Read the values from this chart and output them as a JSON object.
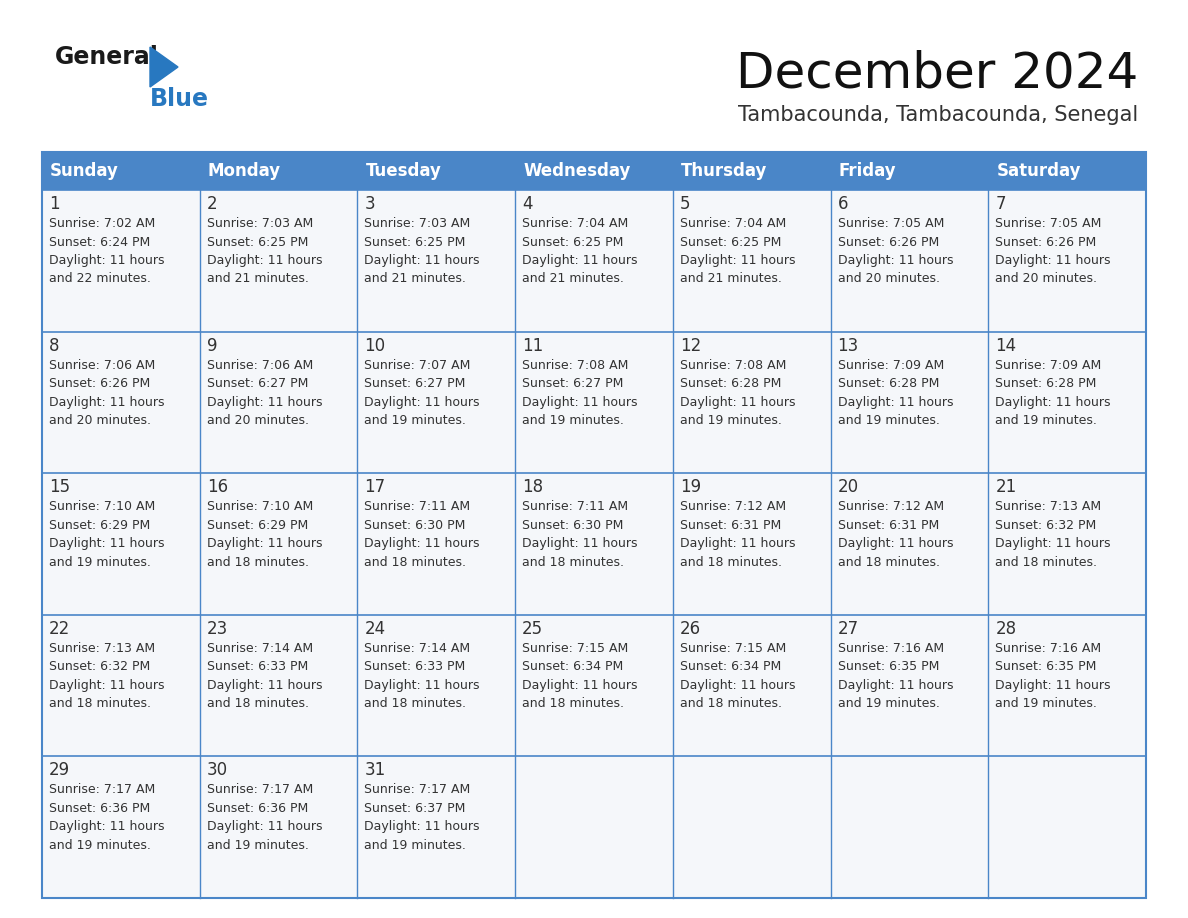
{
  "title": "December 2024",
  "subtitle": "Tambacounda, Tambacounda, Senegal",
  "days_of_week": [
    "Sunday",
    "Monday",
    "Tuesday",
    "Wednesday",
    "Thursday",
    "Friday",
    "Saturday"
  ],
  "header_bg": "#4a86c8",
  "header_text": "#ffffff",
  "cell_bg": "#f5f7fa",
  "cell_border_color": "#4a86c8",
  "day_num_color": "#333333",
  "info_color": "#333333",
  "title_color": "#111111",
  "subtitle_color": "#333333",
  "logo_general_color": "#1a1a1a",
  "logo_blue_color": "#2878c0",
  "logo_triangle_color": "#2878c0",
  "calendar_data": [
    {
      "day": 1,
      "col": 0,
      "row": 0,
      "sunrise": "7:02 AM",
      "sunset": "6:24 PM",
      "daylight": "11 hours and 22 minutes."
    },
    {
      "day": 2,
      "col": 1,
      "row": 0,
      "sunrise": "7:03 AM",
      "sunset": "6:25 PM",
      "daylight": "11 hours and 21 minutes."
    },
    {
      "day": 3,
      "col": 2,
      "row": 0,
      "sunrise": "7:03 AM",
      "sunset": "6:25 PM",
      "daylight": "11 hours and 21 minutes."
    },
    {
      "day": 4,
      "col": 3,
      "row": 0,
      "sunrise": "7:04 AM",
      "sunset": "6:25 PM",
      "daylight": "11 hours and 21 minutes."
    },
    {
      "day": 5,
      "col": 4,
      "row": 0,
      "sunrise": "7:04 AM",
      "sunset": "6:25 PM",
      "daylight": "11 hours and 21 minutes."
    },
    {
      "day": 6,
      "col": 5,
      "row": 0,
      "sunrise": "7:05 AM",
      "sunset": "6:26 PM",
      "daylight": "11 hours and 20 minutes."
    },
    {
      "day": 7,
      "col": 6,
      "row": 0,
      "sunrise": "7:05 AM",
      "sunset": "6:26 PM",
      "daylight": "11 hours and 20 minutes."
    },
    {
      "day": 8,
      "col": 0,
      "row": 1,
      "sunrise": "7:06 AM",
      "sunset": "6:26 PM",
      "daylight": "11 hours and 20 minutes."
    },
    {
      "day": 9,
      "col": 1,
      "row": 1,
      "sunrise": "7:06 AM",
      "sunset": "6:27 PM",
      "daylight": "11 hours and 20 minutes."
    },
    {
      "day": 10,
      "col": 2,
      "row": 1,
      "sunrise": "7:07 AM",
      "sunset": "6:27 PM",
      "daylight": "11 hours and 19 minutes."
    },
    {
      "day": 11,
      "col": 3,
      "row": 1,
      "sunrise": "7:08 AM",
      "sunset": "6:27 PM",
      "daylight": "11 hours and 19 minutes."
    },
    {
      "day": 12,
      "col": 4,
      "row": 1,
      "sunrise": "7:08 AM",
      "sunset": "6:28 PM",
      "daylight": "11 hours and 19 minutes."
    },
    {
      "day": 13,
      "col": 5,
      "row": 1,
      "sunrise": "7:09 AM",
      "sunset": "6:28 PM",
      "daylight": "11 hours and 19 minutes."
    },
    {
      "day": 14,
      "col": 6,
      "row": 1,
      "sunrise": "7:09 AM",
      "sunset": "6:28 PM",
      "daylight": "11 hours and 19 minutes."
    },
    {
      "day": 15,
      "col": 0,
      "row": 2,
      "sunrise": "7:10 AM",
      "sunset": "6:29 PM",
      "daylight": "11 hours and 19 minutes."
    },
    {
      "day": 16,
      "col": 1,
      "row": 2,
      "sunrise": "7:10 AM",
      "sunset": "6:29 PM",
      "daylight": "11 hours and 18 minutes."
    },
    {
      "day": 17,
      "col": 2,
      "row": 2,
      "sunrise": "7:11 AM",
      "sunset": "6:30 PM",
      "daylight": "11 hours and 18 minutes."
    },
    {
      "day": 18,
      "col": 3,
      "row": 2,
      "sunrise": "7:11 AM",
      "sunset": "6:30 PM",
      "daylight": "11 hours and 18 minutes."
    },
    {
      "day": 19,
      "col": 4,
      "row": 2,
      "sunrise": "7:12 AM",
      "sunset": "6:31 PM",
      "daylight": "11 hours and 18 minutes."
    },
    {
      "day": 20,
      "col": 5,
      "row": 2,
      "sunrise": "7:12 AM",
      "sunset": "6:31 PM",
      "daylight": "11 hours and 18 minutes."
    },
    {
      "day": 21,
      "col": 6,
      "row": 2,
      "sunrise": "7:13 AM",
      "sunset": "6:32 PM",
      "daylight": "11 hours and 18 minutes."
    },
    {
      "day": 22,
      "col": 0,
      "row": 3,
      "sunrise": "7:13 AM",
      "sunset": "6:32 PM",
      "daylight": "11 hours and 18 minutes."
    },
    {
      "day": 23,
      "col": 1,
      "row": 3,
      "sunrise": "7:14 AM",
      "sunset": "6:33 PM",
      "daylight": "11 hours and 18 minutes."
    },
    {
      "day": 24,
      "col": 2,
      "row": 3,
      "sunrise": "7:14 AM",
      "sunset": "6:33 PM",
      "daylight": "11 hours and 18 minutes."
    },
    {
      "day": 25,
      "col": 3,
      "row": 3,
      "sunrise": "7:15 AM",
      "sunset": "6:34 PM",
      "daylight": "11 hours and 18 minutes."
    },
    {
      "day": 26,
      "col": 4,
      "row": 3,
      "sunrise": "7:15 AM",
      "sunset": "6:34 PM",
      "daylight": "11 hours and 18 minutes."
    },
    {
      "day": 27,
      "col": 5,
      "row": 3,
      "sunrise": "7:16 AM",
      "sunset": "6:35 PM",
      "daylight": "11 hours and 19 minutes."
    },
    {
      "day": 28,
      "col": 6,
      "row": 3,
      "sunrise": "7:16 AM",
      "sunset": "6:35 PM",
      "daylight": "11 hours and 19 minutes."
    },
    {
      "day": 29,
      "col": 0,
      "row": 4,
      "sunrise": "7:17 AM",
      "sunset": "6:36 PM",
      "daylight": "11 hours and 19 minutes."
    },
    {
      "day": 30,
      "col": 1,
      "row": 4,
      "sunrise": "7:17 AM",
      "sunset": "6:36 PM",
      "daylight": "11 hours and 19 minutes."
    },
    {
      "day": 31,
      "col": 2,
      "row": 4,
      "sunrise": "7:17 AM",
      "sunset": "6:37 PM",
      "daylight": "11 hours and 19 minutes."
    }
  ]
}
